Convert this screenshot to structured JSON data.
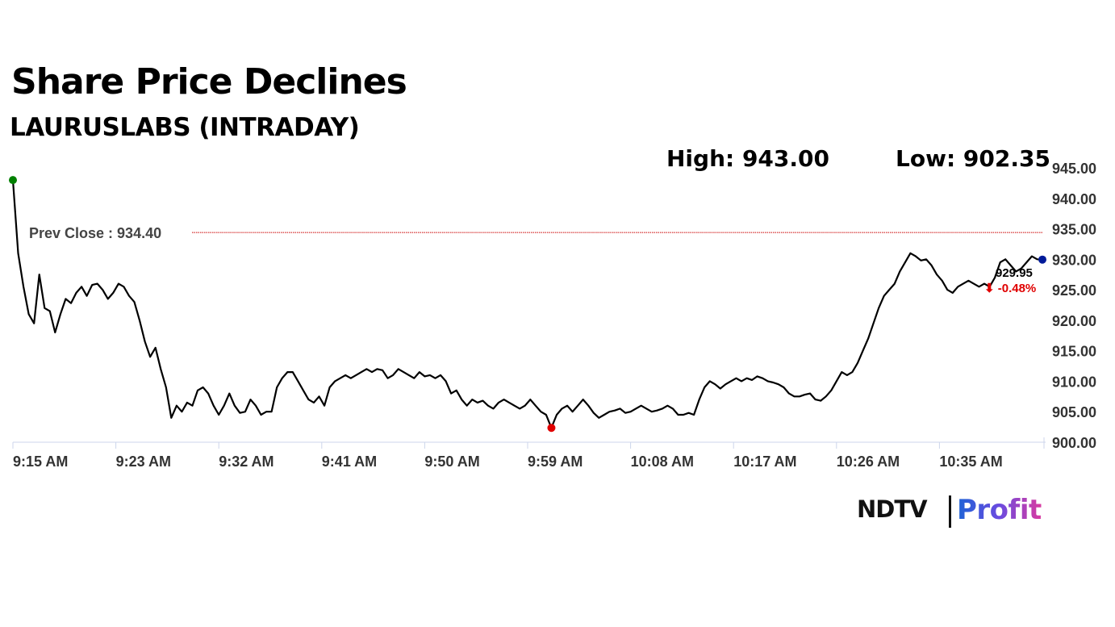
{
  "header": {
    "title": "Share Price Declines",
    "subtitle": "LAURUSLABS (INTRADAY)",
    "high_label": "High: 943.00",
    "low_label": "Low: 902.35"
  },
  "chart_data": {
    "type": "line",
    "title": "Share Price Declines",
    "subtitle": "LAURUSLABS (INTRADAY)",
    "xlabel": "",
    "ylabel": "",
    "ylim": [
      900,
      945
    ],
    "yticks": [
      "945.00",
      "940.00",
      "935.00",
      "930.00",
      "925.00",
      "920.00",
      "915.00",
      "910.00",
      "905.00",
      "900.00"
    ],
    "xticks": [
      "9:15 AM",
      "9:23 AM",
      "9:32 AM",
      "9:41 AM",
      "9:50 AM",
      "9:59 AM",
      "10:08 AM",
      "10:17 AM",
      "10:26 AM",
      "10:35 AM"
    ],
    "prev_close": 934.4,
    "prev_close_label": "Prev Close : 934.40",
    "high": 943.0,
    "low": 902.35,
    "last_value_label": "929.95",
    "change_label": "⬇ -0.48%",
    "series": [
      {
        "values": [
          943.0,
          931.0,
          925.5,
          921.0,
          919.5,
          927.5,
          922.0,
          921.5,
          918.0,
          921.0,
          923.5,
          922.8,
          924.5,
          925.5,
          924.0,
          925.8,
          926.0,
          925.0,
          923.5,
          924.5,
          926.0,
          925.5,
          924.0,
          923.0,
          920.0,
          916.5,
          914.0,
          915.5,
          912.0,
          909.0,
          904.0,
          906.0,
          905.0,
          906.5,
          906.0,
          908.5,
          909.0,
          908.0,
          906.0,
          904.5,
          906.0,
          908.0,
          906.0,
          904.8,
          905.0,
          907.0,
          906.0,
          904.5,
          905.0,
          905.0,
          909.0,
          910.5,
          911.5,
          911.5,
          910.0,
          908.5,
          907.0,
          906.5,
          907.5,
          906.0,
          909.0,
          910.0,
          910.5,
          911.0,
          910.5,
          911.0,
          911.5,
          912.0,
          911.5,
          912.0,
          911.8,
          910.5,
          911.0,
          912.0,
          911.5,
          911.0,
          910.5,
          911.5,
          910.8,
          911.0,
          910.5,
          911.0,
          910.0,
          908.0,
          908.5,
          907.0,
          906.0,
          907.0,
          906.5,
          906.8,
          906.0,
          905.5,
          906.5,
          907.0,
          906.5,
          906.0,
          905.5,
          906.0,
          907.0,
          906.0,
          905.0,
          904.5,
          902.35,
          904.5,
          905.5,
          906.0,
          905.0,
          906.0,
          907.0,
          906.0,
          904.8,
          904.0,
          904.5,
          905.0,
          905.2,
          905.5,
          904.8,
          905.0,
          905.5,
          906.0,
          905.5,
          905.0,
          905.2,
          905.5,
          906.0,
          905.5,
          904.5,
          904.5,
          904.8,
          904.5,
          907.0,
          909.0,
          910.0,
          909.5,
          908.8,
          909.5,
          910.0,
          910.5,
          910.0,
          910.5,
          910.2,
          910.8,
          910.5,
          910.0,
          909.8,
          909.5,
          909.0,
          908.0,
          907.5,
          907.5,
          907.8,
          908.0,
          907.0,
          906.8,
          907.5,
          908.5,
          910.0,
          911.5,
          911.0,
          911.5,
          913.0,
          915.0,
          917.0,
          919.5,
          922.0,
          924.0,
          925.0,
          926.0,
          928.0,
          929.5,
          931.0,
          930.5,
          929.8,
          930.0,
          929.0,
          927.5,
          926.5,
          925.0,
          924.5,
          925.5,
          926.0,
          926.5,
          926.0,
          925.5,
          926.0,
          925.5,
          927.0,
          929.5,
          930.0,
          929.0,
          928.0,
          928.5,
          929.5,
          930.5,
          930.0,
          929.95
        ]
      }
    ]
  },
  "brand": {
    "logo_left": "NDTV",
    "logo_right": "Profit"
  },
  "colors": {
    "line": "#000000",
    "prev_close_line": "#cc0000",
    "high_marker": "#008000",
    "low_marker": "#e00000",
    "last_marker": "#001a99",
    "change_text": "#e00000"
  }
}
